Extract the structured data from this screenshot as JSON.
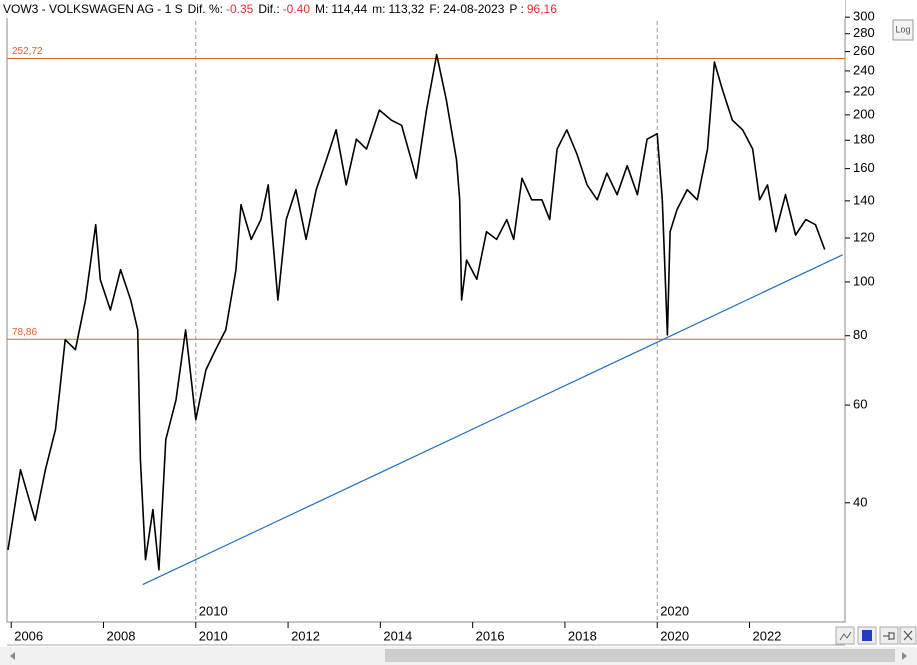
{
  "header": {
    "symbol": "VOW3 - VOLKSWAGEN AG - 1 S",
    "fields": [
      {
        "label": "Dif. %:",
        "value": "-0.35",
        "color": "#e03030"
      },
      {
        "label": "Dif.:",
        "value": "-0.40",
        "color": "#e03030"
      },
      {
        "label": "M:",
        "value": "114,44",
        "color": "#000000"
      },
      {
        "label": "m:",
        "value": "113,32",
        "color": "#000000"
      },
      {
        "label": "F:",
        "value": "24-08-2023",
        "color": "#000000"
      },
      {
        "label": "P :",
        "value": "96,16",
        "color": "#e03030"
      }
    ]
  },
  "log_button": "Log",
  "chart_data": {
    "type": "line",
    "color": "#000000",
    "log_scale": true,
    "x": [
      2005.93,
      2006.2,
      2006.52,
      2006.74,
      2006.96,
      2007.17,
      2007.39,
      2007.61,
      2007.83,
      2007.93,
      2008.15,
      2008.37,
      2008.59,
      2008.74,
      2008.8,
      2008.91,
      2009.07,
      2009.2,
      2009.35,
      2009.57,
      2009.78,
      2010.0,
      2010.22,
      2010.43,
      2010.65,
      2010.87,
      2010.98,
      2011.2,
      2011.41,
      2011.57,
      2011.78,
      2011.96,
      2012.17,
      2012.39,
      2012.61,
      2012.83,
      2013.04,
      2013.26,
      2013.48,
      2013.7,
      2013.98,
      2014.24,
      2014.46,
      2014.67,
      2014.78,
      2015.0,
      2015.22,
      2015.43,
      2015.65,
      2015.72,
      2015.76,
      2015.87,
      2016.09,
      2016.3,
      2016.52,
      2016.74,
      2016.89,
      2017.07,
      2017.28,
      2017.5,
      2017.67,
      2017.83,
      2018.04,
      2018.26,
      2018.48,
      2018.7,
      2018.91,
      2019.13,
      2019.35,
      2019.57,
      2019.78,
      2020.0,
      2020.11,
      2020.22,
      2020.28,
      2020.43,
      2020.65,
      2020.87,
      2021.09,
      2021.24,
      2021.41,
      2021.63,
      2021.85,
      2022.07,
      2022.22,
      2022.39,
      2022.57,
      2022.78,
      2023.0,
      2023.22,
      2023.43,
      2023.63
    ],
    "values": [
      32.9,
      45.9,
      37.2,
      45.9,
      54.2,
      78.7,
      75.5,
      92.8,
      126.8,
      100.9,
      89.0,
      105.2,
      92.8,
      82.0,
      47.8,
      31.6,
      38.9,
      30.3,
      52.0,
      61.3,
      82.0,
      56.5,
      69.4,
      75.5,
      82.0,
      105.0,
      137.8,
      119.3,
      129.5,
      149.6,
      92.8,
      129.5,
      146.6,
      119.3,
      146.6,
      166.0,
      188.0,
      149.6,
      180.8,
      173.5,
      204.0,
      195.6,
      191.5,
      166.0,
      153.7,
      204.0,
      256.8,
      213.0,
      166.0,
      140.6,
      92.8,
      109.5,
      101.1,
      123.2,
      119.3,
      129.5,
      119.3,
      153.7,
      140.6,
      140.6,
      129.5,
      173.5,
      188.0,
      170.0,
      149.6,
      140.6,
      157.0,
      143.6,
      162.0,
      143.6,
      180.8,
      185.0,
      140.6,
      80.3,
      123.2,
      135.0,
      146.6,
      140.6,
      173.5,
      249.0,
      222.5,
      195.6,
      188.0,
      173.5,
      140.6,
      149.6,
      123.2,
      143.6,
      121.5,
      129.5,
      126.8,
      114.4
    ],
    "xlim": [
      2005.93,
      2024.07
    ],
    "xticks": [
      2006,
      2008,
      2010,
      2012,
      2014,
      2016,
      2018,
      2020,
      2022
    ],
    "decade_markers": [
      2010,
      2020
    ],
    "ylim": [
      24.6,
      309
    ],
    "yticks": [
      40,
      60,
      80,
      100,
      120,
      140,
      160,
      180,
      200,
      220,
      240,
      260,
      280,
      300
    ],
    "levels": [
      {
        "value": 252.72,
        "label": "252,72"
      },
      {
        "value": 78.86,
        "label": "78,86"
      }
    ],
    "level_color": "#e0602c",
    "trendline": {
      "x": [
        2008.85,
        2024.02
      ],
      "values": [
        28.5,
        111.9
      ],
      "color": "#1f6fbf"
    }
  }
}
